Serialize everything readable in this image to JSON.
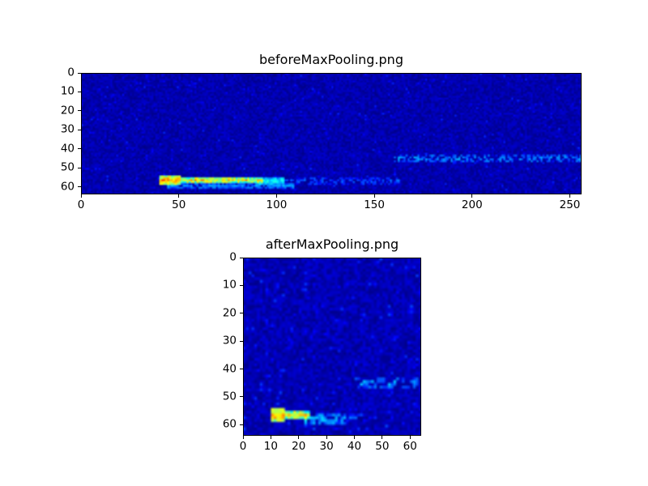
{
  "figure": {
    "background_color": "#ffffff",
    "heatmap_background_color": "#000080"
  },
  "chart_data": [
    {
      "type": "heatmap",
      "title": "beforeMaxPooling.png",
      "colormap": "jet",
      "xlabel": "",
      "ylabel": "",
      "x_range": [
        0,
        256
      ],
      "y_range": [
        0,
        64
      ],
      "y_axis_inverted": true,
      "x_ticks": [
        0,
        50,
        100,
        150,
        200,
        250
      ],
      "y_ticks": [
        0,
        10,
        20,
        30,
        40,
        50,
        60
      ],
      "background": {
        "base": 0.01,
        "amp": 0.07,
        "speckle_prob": 0.06,
        "speckle_amp": 0.1
      },
      "features": [
        {
          "label": "hot-blob",
          "x0": 40,
          "x1": 50,
          "y0": 54,
          "y1": 58,
          "v": 0.82,
          "jitter": 0.2
        },
        {
          "label": "hot-streak",
          "x0": 49,
          "x1": 92,
          "y0": 55,
          "y1": 57,
          "v": 0.78,
          "jitter": 0.3
        },
        {
          "label": "streak-tail-cyan",
          "x0": 90,
          "x1": 103,
          "y0": 55,
          "y1": 58,
          "v": 0.46,
          "jitter": 0.15
        },
        {
          "label": "underline-cyan",
          "x0": 44,
          "x1": 108,
          "y0": 58,
          "y1": 60,
          "v": 0.32,
          "jitter": 0.12,
          "gap": 0.15
        },
        {
          "label": "faint-speckles-mid",
          "x0": 100,
          "x1": 162,
          "y0": 55,
          "y1": 58,
          "v": 0.26,
          "jitter": 0.1,
          "gap": 0.55
        },
        {
          "label": "faint-streak-right",
          "x0": 160,
          "x1": 255,
          "y0": 43,
          "y1": 46,
          "v": 0.33,
          "jitter": 0.12,
          "gap": 0.5
        }
      ]
    },
    {
      "type": "heatmap",
      "title": "afterMaxPooling.png",
      "colormap": "jet",
      "xlabel": "",
      "ylabel": "",
      "x_range": [
        0,
        64
      ],
      "y_range": [
        0,
        64
      ],
      "y_axis_inverted": true,
      "x_ticks": [
        0,
        10,
        20,
        30,
        40,
        50,
        60
      ],
      "y_ticks": [
        0,
        10,
        20,
        30,
        40,
        50,
        60
      ],
      "background": {
        "base": 0.01,
        "amp": 0.08,
        "speckle_prob": 0.08,
        "speckle_amp": 0.12
      },
      "features": [
        {
          "label": "hot-blob",
          "x0": 10,
          "x1": 14,
          "y0": 54,
          "y1": 58,
          "v": 0.82,
          "jitter": 0.2
        },
        {
          "label": "hot-streak",
          "x0": 13,
          "x1": 23,
          "y0": 55,
          "y1": 57,
          "v": 0.75,
          "jitter": 0.3
        },
        {
          "label": "streak-tail-cyan",
          "x0": 22,
          "x1": 36,
          "y0": 56,
          "y1": 59,
          "v": 0.38,
          "jitter": 0.15,
          "gap": 0.2
        },
        {
          "label": "faint-speckles-mid",
          "x0": 30,
          "x1": 41,
          "y0": 56,
          "y1": 58,
          "v": 0.26,
          "jitter": 0.1,
          "gap": 0.5
        },
        {
          "label": "faint-streak-right",
          "x0": 40,
          "x1": 62,
          "y0": 43,
          "y1": 46,
          "v": 0.35,
          "jitter": 0.13,
          "gap": 0.45
        }
      ]
    }
  ]
}
